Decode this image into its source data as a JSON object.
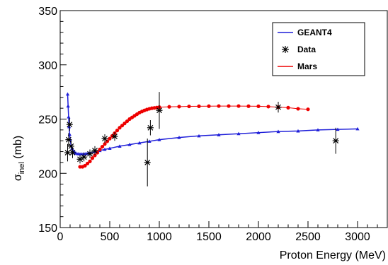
{
  "chart_data": {
    "type": "scatter",
    "xlabel": "Proton Energy (MeV)",
    "ylabel_main": "σ",
    "ylabel_sub": "inel",
    "ylabel_unit": " (mb)",
    "xlim": [
      0,
      3300
    ],
    "ylim": [
      150,
      350
    ],
    "x_ticks": [
      0,
      500,
      1000,
      1500,
      2000,
      2500,
      3000
    ],
    "y_ticks": [
      150,
      200,
      250,
      300,
      350
    ],
    "legend_position": "top-right",
    "series": [
      {
        "name": "GEANT4",
        "color": "#1f1fd9",
        "style": "line-triangle-markers",
        "x": [
          75,
          80,
          85,
          90,
          95,
          100,
          110,
          120,
          130,
          140,
          150,
          160,
          180,
          200,
          220,
          240,
          260,
          280,
          300,
          350,
          400,
          450,
          500,
          600,
          700,
          800,
          900,
          1000,
          1200,
          1400,
          1600,
          1800,
          2000,
          2200,
          2400,
          2600,
          2800,
          3000
        ],
        "y": [
          273,
          262,
          252,
          243,
          236,
          231,
          226,
          223,
          221,
          220,
          219,
          218.5,
          218,
          217.8,
          217.8,
          218,
          218.2,
          218.5,
          219,
          220,
          221,
          222,
          223,
          225,
          226.5,
          228,
          229.5,
          231,
          233,
          234.5,
          235.5,
          236.5,
          237.5,
          238.5,
          239,
          240,
          240.5,
          241
        ]
      },
      {
        "name": "Data",
        "color": "#000000",
        "style": "star-errorbars",
        "x": [
          75,
          85,
          95,
          110,
          125,
          200,
          240,
          300,
          350,
          450,
          550,
          880,
          910,
          1000,
          2200,
          2780
        ],
        "y": [
          219,
          231,
          245,
          225,
          219,
          213,
          215,
          218,
          221,
          232,
          234,
          210,
          242,
          258,
          261,
          230
        ],
        "err": [
          8,
          6,
          6,
          5,
          5,
          4,
          4,
          4,
          4,
          4,
          4,
          22,
          7,
          17,
          5,
          12
        ]
      },
      {
        "name": "Mars",
        "color": "#ee0000",
        "style": "circle-markers",
        "x": [
          200,
          225,
          250,
          275,
          300,
          325,
          350,
          375,
          400,
          425,
          450,
          475,
          500,
          525,
          550,
          575,
          600,
          625,
          650,
          675,
          700,
          725,
          750,
          775,
          800,
          825,
          850,
          875,
          900,
          925,
          950,
          975,
          1000,
          1100,
          1200,
          1300,
          1400,
          1500,
          1600,
          1700,
          1800,
          1900,
          2000,
          2100,
          2200,
          2300,
          2400,
          2500
        ],
        "y": [
          206,
          206,
          207,
          209,
          211,
          214,
          216.5,
          219,
          222,
          224.5,
          227,
          229.5,
          232,
          234.5,
          237,
          239.5,
          242,
          244,
          246,
          248,
          250,
          251.5,
          253,
          254.5,
          256,
          257,
          258,
          258.8,
          259.5,
          260,
          260.3,
          260.6,
          261,
          261.3,
          261.5,
          261.7,
          261.8,
          261.9,
          262,
          262,
          262,
          261.9,
          261.8,
          261.5,
          261,
          260.5,
          259.5,
          259
        ]
      }
    ]
  }
}
